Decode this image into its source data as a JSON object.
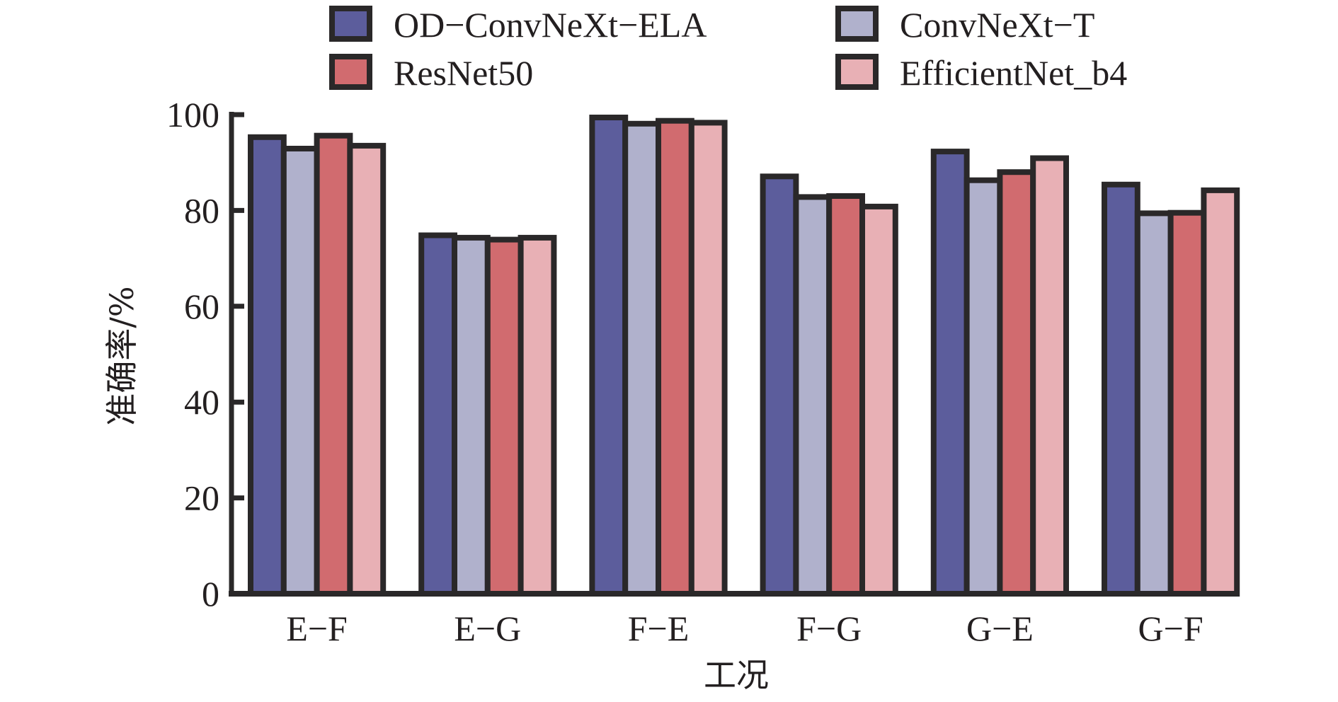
{
  "chart_data": {
    "type": "bar",
    "title": "",
    "xlabel": "工况",
    "ylabel": "准确率/%",
    "categories": [
      "E−F",
      "E−G",
      "F−E",
      "F−G",
      "G−E",
      "G−F"
    ],
    "ylim": [
      0,
      100
    ],
    "yticks": [
      0,
      20,
      40,
      60,
      80,
      100
    ],
    "grid": false,
    "legend_position": "top",
    "series": [
      {
        "name": "OD−ConvNeXt−ELA",
        "color": "#5c5d9c",
        "values": [
          95.9,
          75.4,
          100.0,
          87.7,
          92.9,
          86.0
        ]
      },
      {
        "name": "ConvNeXt−T",
        "color": "#b0b1cc",
        "values": [
          93.5,
          74.9,
          98.7,
          83.4,
          86.9,
          80.0
        ]
      },
      {
        "name": "ResNet50",
        "color": "#d16b6f",
        "values": [
          96.2,
          74.5,
          99.3,
          83.6,
          88.6,
          80.1
        ]
      },
      {
        "name": "EfficientNet_b4",
        "color": "#e8b0b5",
        "values": [
          94.1,
          74.9,
          98.9,
          81.4,
          91.5,
          84.8
        ]
      }
    ],
    "legend_order": [
      0,
      1,
      2,
      3
    ],
    "border_color": "#2a2829"
  }
}
